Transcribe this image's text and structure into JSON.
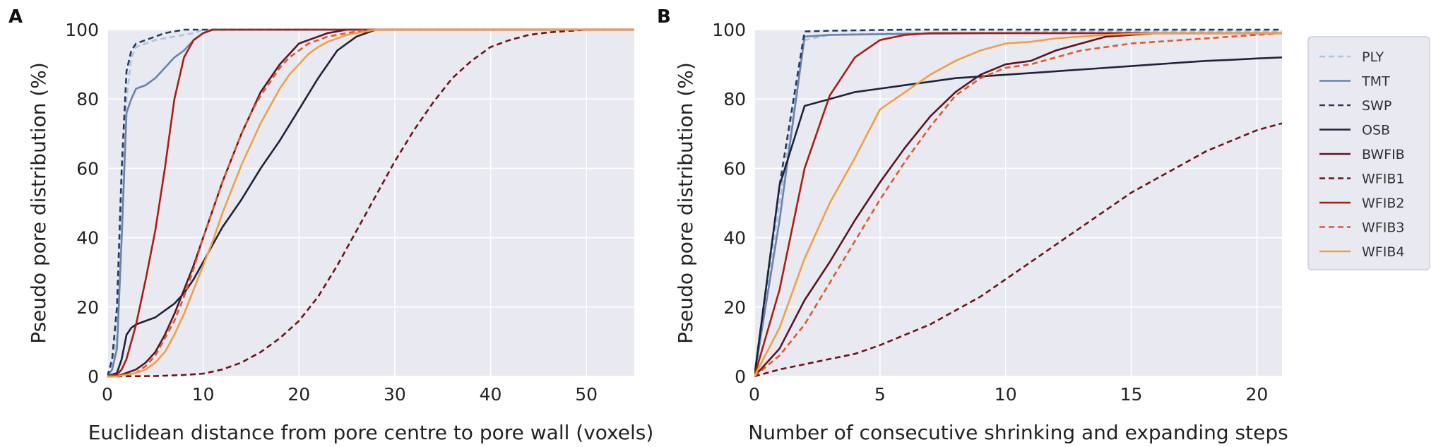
{
  "colors": {
    "plot_bg": "#e9e9f2",
    "grid": "#ffffff",
    "PLY": "#a8c5e6",
    "TMT": "#6b83aa",
    "SWP": "#2a3a5c",
    "OSB": "#1e2438",
    "BWFIB": "#5a1620",
    "WFIB1": "#6b1414",
    "WFIB2": "#a81e15",
    "WFIB3": "#e0582a",
    "WFIB4": "#f0a040"
  },
  "legend": {
    "entries": [
      {
        "name": "PLY",
        "dash": true
      },
      {
        "name": "TMT",
        "dash": false
      },
      {
        "name": "SWP",
        "dash": true
      },
      {
        "name": "OSB",
        "dash": false
      },
      {
        "name": "BWFIB",
        "dash": false
      },
      {
        "name": "WFIB1",
        "dash": true
      },
      {
        "name": "WFIB2",
        "dash": false
      },
      {
        "name": "WFIB3",
        "dash": true
      },
      {
        "name": "WFIB4",
        "dash": false
      }
    ]
  },
  "chart_data": [
    {
      "panel": "A",
      "type": "line",
      "xlabel": "Euclidean distance from pore centre to pore wall (voxels)",
      "ylabel": "Pseudo pore distribution (%)",
      "xlim": [
        0,
        55
      ],
      "ylim": [
        0,
        100
      ],
      "xticks": [
        0,
        10,
        20,
        30,
        40,
        50
      ],
      "yticks": [
        0,
        20,
        40,
        60,
        80,
        100
      ],
      "series": [
        {
          "name": "PLY",
          "x": [
            0,
            0.5,
            1,
            1.5,
            2,
            2.5,
            3,
            5,
            7,
            9,
            10,
            55
          ],
          "y": [
            0,
            3,
            12,
            45,
            80,
            92,
            95,
            97,
            98,
            99,
            100,
            100
          ]
        },
        {
          "name": "TMT",
          "x": [
            0,
            0.5,
            1,
            1.5,
            2,
            2.5,
            3,
            4,
            5,
            6,
            7,
            8,
            9,
            10,
            11,
            55
          ],
          "y": [
            0,
            2,
            8,
            40,
            76,
            80,
            83,
            84,
            86,
            89,
            92,
            94,
            97,
            99,
            100,
            100
          ]
        },
        {
          "name": "SWP",
          "x": [
            0,
            0.5,
            1,
            1.5,
            2,
            2.5,
            3,
            4,
            5,
            6,
            7,
            8,
            10,
            55
          ],
          "y": [
            0,
            5,
            20,
            60,
            88,
            94,
            96,
            97,
            98,
            99,
            99.5,
            100,
            100,
            100
          ]
        },
        {
          "name": "OSB",
          "x": [
            0,
            1,
            1.5,
            2,
            2.5,
            3,
            4,
            5,
            6,
            7,
            8,
            9,
            10,
            11,
            12,
            14,
            16,
            18,
            20,
            22,
            24,
            26,
            28,
            30,
            55
          ],
          "y": [
            0,
            1,
            5,
            12,
            14,
            15,
            16,
            17,
            19,
            21,
            24,
            28,
            33,
            38,
            43,
            51,
            60,
            68,
            77,
            86,
            94,
            98,
            100,
            100,
            100
          ]
        },
        {
          "name": "BWFIB",
          "x": [
            0,
            1,
            2,
            3,
            4,
            5,
            6,
            7,
            8,
            9,
            10,
            11,
            12,
            13,
            14,
            15,
            16,
            17,
            18,
            19,
            20,
            21,
            22,
            23,
            24,
            25,
            55
          ],
          "y": [
            0,
            0,
            1,
            2,
            4,
            7,
            12,
            18,
            25,
            32,
            40,
            48,
            56,
            63,
            70,
            76,
            82,
            86,
            90,
            93,
            96,
            97,
            98,
            99,
            99.5,
            100,
            100
          ]
        },
        {
          "name": "WFIB1",
          "x": [
            0,
            5,
            8,
            10,
            12,
            14,
            16,
            18,
            20,
            22,
            24,
            26,
            28,
            30,
            32,
            34,
            36,
            38,
            40,
            42,
            44,
            46,
            48,
            50,
            55
          ],
          "y": [
            0,
            0.1,
            0.4,
            0.8,
            2,
            4,
            7,
            11,
            16,
            23,
            32,
            42,
            52,
            62,
            71,
            79,
            86,
            91,
            95,
            97,
            98.5,
            99.2,
            99.6,
            100,
            100
          ]
        },
        {
          "name": "WFIB2",
          "x": [
            0,
            1,
            1.5,
            2,
            3,
            4,
            5,
            6,
            7,
            8,
            9,
            10,
            11,
            12,
            55
          ],
          "y": [
            0,
            0.5,
            2,
            5,
            15,
            28,
            42,
            60,
            80,
            92,
            97,
            99,
            100,
            100,
            100
          ]
        },
        {
          "name": "WFIB3",
          "x": [
            0,
            1,
            2,
            3,
            4,
            5,
            6,
            7,
            8,
            9,
            10,
            11,
            12,
            13,
            14,
            15,
            16,
            17,
            18,
            19,
            20,
            21,
            22,
            23,
            24,
            25,
            26,
            27,
            28,
            55
          ],
          "y": [
            0,
            0,
            0.5,
            1,
            3,
            6,
            11,
            16,
            23,
            31,
            40,
            48,
            56,
            63,
            70,
            76,
            81,
            85,
            89,
            92,
            94,
            96,
            97,
            98,
            98.5,
            99,
            99.5,
            100,
            100,
            100
          ]
        },
        {
          "name": "WFIB4",
          "x": [
            0,
            1,
            2,
            3,
            4,
            5,
            6,
            7,
            8,
            9,
            10,
            11,
            12,
            13,
            14,
            15,
            16,
            17,
            18,
            19,
            20,
            21,
            22,
            23,
            24,
            25,
            26,
            27,
            28,
            30,
            55
          ],
          "y": [
            0,
            0,
            0.5,
            1,
            2,
            4,
            7,
            12,
            18,
            25,
            32,
            39,
            47,
            54,
            61,
            67,
            73,
            78,
            83,
            87,
            90,
            93,
            95,
            96.5,
            97.5,
            98.5,
            99,
            99.5,
            100,
            100,
            100
          ]
        }
      ]
    },
    {
      "panel": "B",
      "type": "line",
      "xlabel": "Number of consecutive shrinking and expanding steps",
      "ylabel": "Pseudo pore distribution (%)",
      "xlim": [
        0,
        21
      ],
      "ylim": [
        0,
        100
      ],
      "xticks": [
        0,
        5,
        10,
        15,
        20
      ],
      "yticks": [
        0,
        20,
        40,
        60,
        80,
        100
      ],
      "series": [
        {
          "name": "PLY",
          "x": [
            0,
            1,
            2,
            3,
            4,
            5,
            6,
            8,
            10,
            12,
            14,
            21
          ],
          "y": [
            0,
            50,
            97,
            98.5,
            98.7,
            98.8,
            98.9,
            99,
            99.2,
            99.4,
            99.5,
            99.5
          ]
        },
        {
          "name": "TMT",
          "x": [
            0,
            1,
            2,
            3,
            4,
            5,
            6,
            8,
            10,
            12,
            14,
            21
          ],
          "y": [
            0,
            45,
            98,
            98.5,
            98.6,
            98.7,
            98.8,
            98.9,
            99,
            99,
            99,
            99
          ]
        },
        {
          "name": "SWP",
          "x": [
            0,
            1,
            2,
            3,
            4,
            5,
            6,
            8,
            10,
            12,
            14,
            21
          ],
          "y": [
            0,
            55,
            99.5,
            99.7,
            99.8,
            99.9,
            100,
            100,
            100,
            100,
            100,
            100
          ]
        },
        {
          "name": "OSB",
          "x": [
            0,
            1,
            2,
            3,
            4,
            5,
            6,
            7,
            8,
            9,
            10,
            11,
            12,
            13,
            14,
            15,
            16,
            17,
            18,
            19,
            20,
            21
          ],
          "y": [
            0,
            55,
            78,
            80,
            82,
            83,
            84,
            85,
            86,
            86.5,
            87,
            87.5,
            88,
            88.5,
            89,
            89.5,
            90,
            90.5,
            91,
            91.3,
            91.7,
            92
          ]
        },
        {
          "name": "BWFIB",
          "x": [
            0,
            1,
            2,
            3,
            4,
            5,
            6,
            7,
            8,
            9,
            10,
            11,
            12,
            13,
            14,
            15,
            16,
            18,
            21
          ],
          "y": [
            0,
            8,
            22,
            33,
            45,
            56,
            66,
            75,
            82,
            87,
            90,
            91,
            94,
            96,
            98,
            98.5,
            99,
            99,
            99
          ]
        },
        {
          "name": "WFIB1",
          "x": [
            0,
            1,
            2,
            3,
            4,
            5,
            6,
            7,
            8,
            9,
            10,
            11,
            12,
            13,
            14,
            15,
            16,
            17,
            18,
            19,
            20,
            21
          ],
          "y": [
            0,
            2,
            3.5,
            5,
            6.5,
            9,
            12,
            15,
            19,
            23,
            28,
            33,
            38,
            43,
            48,
            53,
            57,
            61,
            65,
            68,
            71,
            73
          ]
        },
        {
          "name": "WFIB2",
          "x": [
            0,
            1,
            2,
            3,
            4,
            5,
            6,
            7,
            8,
            10,
            12,
            14,
            21
          ],
          "y": [
            0,
            25,
            60,
            81,
            92,
            97,
            98.5,
            99,
            99,
            99,
            99,
            99,
            99
          ]
        },
        {
          "name": "WFIB3",
          "x": [
            0,
            1,
            2,
            3,
            4,
            5,
            6,
            7,
            8,
            9,
            10,
            11,
            12,
            13,
            14,
            15,
            16,
            17,
            18,
            19,
            20,
            21
          ],
          "y": [
            0,
            6,
            15,
            27,
            39,
            51,
            62,
            72,
            81,
            86,
            89,
            90,
            92,
            94,
            95,
            96,
            96.5,
            97,
            97.5,
            98,
            98.5,
            99
          ]
        },
        {
          "name": "WFIB4",
          "x": [
            0,
            1,
            2,
            3,
            4,
            5,
            6,
            7,
            8,
            9,
            10,
            11,
            12,
            13,
            14,
            16,
            18,
            21
          ],
          "y": [
            0,
            14,
            34,
            50,
            63,
            77,
            82,
            87,
            91,
            94,
            96,
            96.5,
            97.5,
            98,
            98.5,
            99,
            99,
            99
          ]
        }
      ]
    }
  ],
  "panels": {
    "A": {
      "label": "A"
    },
    "B": {
      "label": "B"
    }
  }
}
